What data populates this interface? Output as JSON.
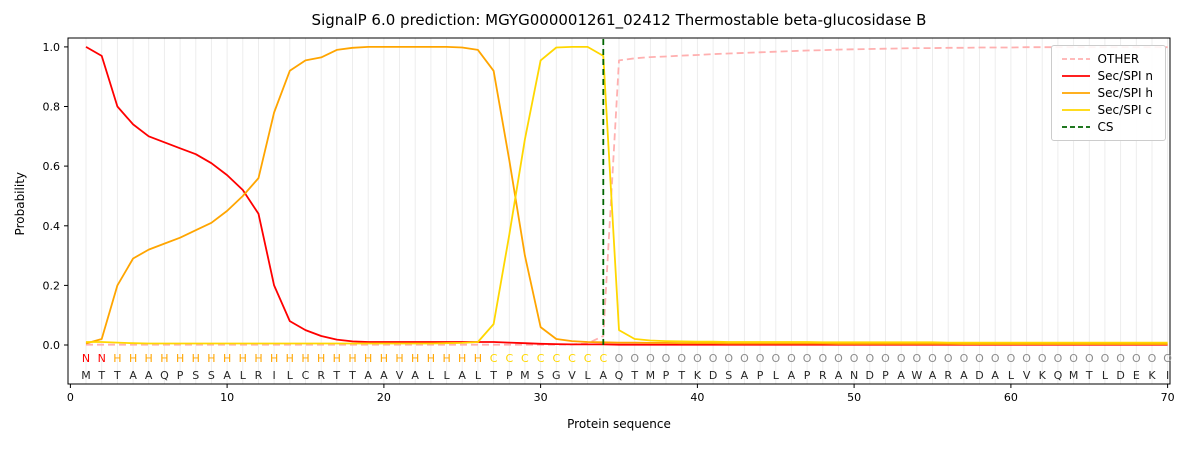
{
  "title": "SignalP 6.0 prediction: MGYG000001261_02412 Thermostable beta-glucosidase B",
  "chart_data": {
    "type": "line",
    "title": "SignalP 6.0 prediction: MGYG000001261_02412 Thermostable beta-glucosidase B",
    "xlabel": "Protein sequence",
    "ylabel": "Probability",
    "xlim": [
      -0.15,
      70.15
    ],
    "ylim": [
      -0.131,
      1.03
    ],
    "x_ticks": [
      0,
      10,
      20,
      30,
      40,
      50,
      60,
      70
    ],
    "y_ticks": [
      0.0,
      0.2,
      0.4,
      0.6,
      0.8,
      1.0
    ],
    "grid": "vertical-per-residue",
    "grid_color": "#ededed",
    "frame_color": "#000000",
    "legend_position": "upper right",
    "x": [
      1,
      2,
      3,
      4,
      5,
      6,
      7,
      8,
      9,
      10,
      11,
      12,
      13,
      14,
      15,
      16,
      17,
      18,
      19,
      20,
      21,
      22,
      23,
      24,
      25,
      26,
      27,
      28,
      29,
      30,
      31,
      32,
      33,
      34,
      35,
      36,
      37,
      38,
      39,
      40,
      41,
      42,
      43,
      44,
      45,
      46,
      47,
      48,
      49,
      50,
      51,
      52,
      53,
      54,
      55,
      56,
      57,
      58,
      59,
      60,
      61,
      62,
      63,
      64,
      65,
      66,
      67,
      68,
      69,
      70
    ],
    "series": [
      {
        "name": "OTHER",
        "color": "#ffb0b0",
        "dash": true,
        "values": [
          0.001,
          0.001,
          0.001,
          0.001,
          0.001,
          0.001,
          0.001,
          0.001,
          0.001,
          0.001,
          0.001,
          0.001,
          0.001,
          0.001,
          0.001,
          0.001,
          0.001,
          0.001,
          0.001,
          0.001,
          0.001,
          0.001,
          0.001,
          0.001,
          0.001,
          0.001,
          0.001,
          0.001,
          0.001,
          0.001,
          0.001,
          0.002,
          0.005,
          0.03,
          0.955,
          0.962,
          0.966,
          0.968,
          0.971,
          0.973,
          0.976,
          0.978,
          0.98,
          0.982,
          0.984,
          0.986,
          0.988,
          0.989,
          0.991,
          0.992,
          0.993,
          0.994,
          0.995,
          0.996,
          0.996,
          0.997,
          0.997,
          0.998,
          0.998,
          0.998,
          0.999,
          0.999,
          0.999,
          0.999,
          0.999,
          0.999,
          0.999,
          0.999,
          0.999,
          0.999
        ]
      },
      {
        "name": "Sec/SPI n",
        "color": "#ff0000",
        "dash": false,
        "values": [
          1.0,
          0.97,
          0.8,
          0.74,
          0.7,
          0.68,
          0.66,
          0.64,
          0.61,
          0.57,
          0.52,
          0.44,
          0.2,
          0.08,
          0.05,
          0.03,
          0.018,
          0.012,
          0.01,
          0.01,
          0.01,
          0.01,
          0.01,
          0.01,
          0.01,
          0.01,
          0.01,
          0.008,
          0.006,
          0.004,
          0.003,
          0.002,
          0.002,
          0.002,
          0.001,
          0.001,
          0.001,
          0.001,
          0.001,
          0.001,
          0.001,
          0.001,
          0.001,
          0.001,
          0.001,
          0.001,
          0.001,
          0.001,
          0.001,
          0.001,
          0.001,
          0.001,
          0.001,
          0.001,
          0.001,
          0.001,
          0.001,
          0.001,
          0.001,
          0.001,
          0.001,
          0.001,
          0.001,
          0.001,
          0.001,
          0.001,
          0.001,
          0.001,
          0.001,
          0.001
        ]
      },
      {
        "name": "Sec/SPI h",
        "color": "#ffa500",
        "dash": false,
        "values": [
          0.005,
          0.02,
          0.2,
          0.29,
          0.32,
          0.34,
          0.36,
          0.385,
          0.41,
          0.45,
          0.5,
          0.56,
          0.78,
          0.92,
          0.955,
          0.965,
          0.99,
          0.997,
          1.0,
          1.0,
          1.0,
          1.0,
          1.0,
          1.0,
          0.998,
          0.99,
          0.92,
          0.62,
          0.3,
          0.06,
          0.02,
          0.013,
          0.01,
          0.009,
          0.008,
          0.008,
          0.007,
          0.007,
          0.006,
          0.006,
          0.006,
          0.005,
          0.005,
          0.005,
          0.005,
          0.005,
          0.005,
          0.005,
          0.004,
          0.004,
          0.004,
          0.004,
          0.004,
          0.004,
          0.004,
          0.004,
          0.003,
          0.003,
          0.003,
          0.003,
          0.003,
          0.003,
          0.003,
          0.003,
          0.003,
          0.003,
          0.003,
          0.003,
          0.003,
          0.003
        ]
      },
      {
        "name": "Sec/SPI c",
        "color": "#ffd700",
        "dash": false,
        "values": [
          0.01,
          0.01,
          0.008,
          0.006,
          0.005,
          0.005,
          0.005,
          0.005,
          0.005,
          0.005,
          0.005,
          0.005,
          0.005,
          0.005,
          0.005,
          0.005,
          0.005,
          0.005,
          0.005,
          0.005,
          0.005,
          0.005,
          0.005,
          0.006,
          0.007,
          0.01,
          0.07,
          0.37,
          0.69,
          0.955,
          0.998,
          1.0,
          1.0,
          0.97,
          0.05,
          0.02,
          0.015,
          0.013,
          0.012,
          0.011,
          0.011,
          0.01,
          0.01,
          0.01,
          0.01,
          0.01,
          0.01,
          0.009,
          0.009,
          0.009,
          0.009,
          0.009,
          0.009,
          0.009,
          0.009,
          0.008,
          0.008,
          0.008,
          0.008,
          0.008,
          0.008,
          0.008,
          0.008,
          0.008,
          0.008,
          0.008,
          0.008,
          0.008,
          0.008,
          0.008
        ]
      }
    ],
    "cs_line": {
      "name": "CS",
      "x": 34,
      "color": "#006400",
      "dash": true
    },
    "region_labels": {
      "text": "NNHHHHHHHHHHHHHHHHHHHHHHHHCCCCCCCCOOOOOOOOOOOOOOOOOOOOOOOOOOOOOOOOOOOO",
      "colors": {
        "N": "#ff0000",
        "H": "#ffa500",
        "C": "#ffd700",
        "O": "#8c8c8c"
      }
    },
    "sequence": {
      "text": "MTTAAQPSSALRILCRTTAAVALLALTPMSGVLAQTMPTKDSAPLAPRANDPAWARADALVKQMTLDEKI",
      "color": "#262626"
    }
  }
}
